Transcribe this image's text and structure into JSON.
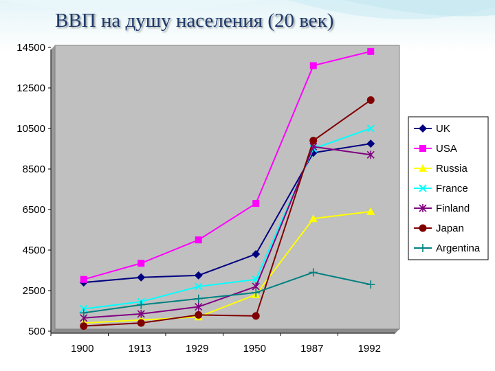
{
  "slide": {
    "title": "ВВП на душу населения (20 век)"
  },
  "chart_data": {
    "type": "line",
    "title": "",
    "xlabel": "",
    "ylabel": "",
    "categories": [
      "1900",
      "1913",
      "1929",
      "1950",
      "1987",
      "1992"
    ],
    "ylim": [
      500,
      14500
    ],
    "yticks": [
      "14500",
      "12500",
      "10500",
      "8500",
      "6500",
      "4500",
      "2500",
      "500"
    ],
    "grid": false,
    "legend": "right",
    "plot_background": "#c0c0c0",
    "series": [
      {
        "name": "UK",
        "color": "#000080",
        "marker": "diamond",
        "values": [
          2800,
          3050,
          3150,
          4200,
          9200,
          9650
        ]
      },
      {
        "name": "USA",
        "color": "#ff00ff",
        "marker": "square",
        "values": [
          2950,
          3750,
          4900,
          6700,
          13500,
          14200
        ]
      },
      {
        "name": "Russia",
        "color": "#ffff00",
        "marker": "triangle",
        "values": [
          800,
          950,
          1100,
          2200,
          5950,
          6300
        ]
      },
      {
        "name": "France",
        "color": "#00ffff",
        "marker": "x",
        "values": [
          1500,
          1850,
          2600,
          2950,
          9400,
          10400
        ]
      },
      {
        "name": "Finland",
        "color": "#800080",
        "marker": "star",
        "values": [
          1050,
          1250,
          1600,
          2600,
          9500,
          9100
        ]
      },
      {
        "name": "Japan",
        "color": "#800000",
        "marker": "circle",
        "values": [
          650,
          800,
          1200,
          1150,
          9800,
          11800
        ]
      },
      {
        "name": "Argentina",
        "color": "#008080",
        "marker": "plus",
        "values": [
          1300,
          1700,
          2000,
          2300,
          3300,
          2700
        ]
      }
    ]
  }
}
